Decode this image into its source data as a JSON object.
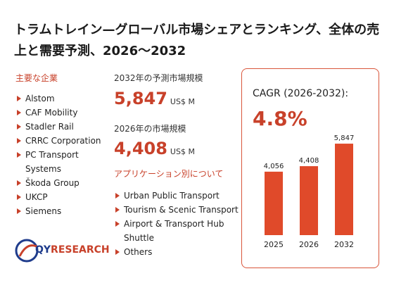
{
  "title": "トラムトレイン—グローバル市場シェアとランキング、全体の売上と需要予測、2026～2032",
  "companies_heading": "主要な企業",
  "companies": [
    "Alstom",
    "CAF Mobility",
    "Stadler Rail",
    "CRRC Corporation",
    "PC Transport Systems",
    "Škoda Group",
    "UKCP",
    "Siemens"
  ],
  "market_2032_label": "2032年の予測市場規模",
  "market_2032_value": "5,847",
  "market_2026_label": "2026年の市場規模",
  "market_2026_value": "4,408",
  "unit": "US$ M",
  "applications_heading": "アプリケーション別について",
  "applications": [
    "Urban Public Transport",
    "Tourism & Scenic Transport",
    "Airport & Transport Hub Shuttle",
    "Others"
  ],
  "cagr_label": "CAGR (2026-2032):",
  "cagr_value": "4.8%",
  "logo": {
    "part1": "QY",
    "part2": "RESEARCH"
  },
  "colors": {
    "accent": "#c8412a",
    "bar": "#e04a2a",
    "logo_blue": "#1f3c8c"
  },
  "chart_data": {
    "type": "bar",
    "categories": [
      "2025",
      "2026",
      "2032"
    ],
    "values": [
      4056,
      4408,
      5847
    ],
    "value_labels": [
      "4,056",
      "4,408",
      "5,847"
    ],
    "ylim": [
      0,
      6300
    ]
  }
}
